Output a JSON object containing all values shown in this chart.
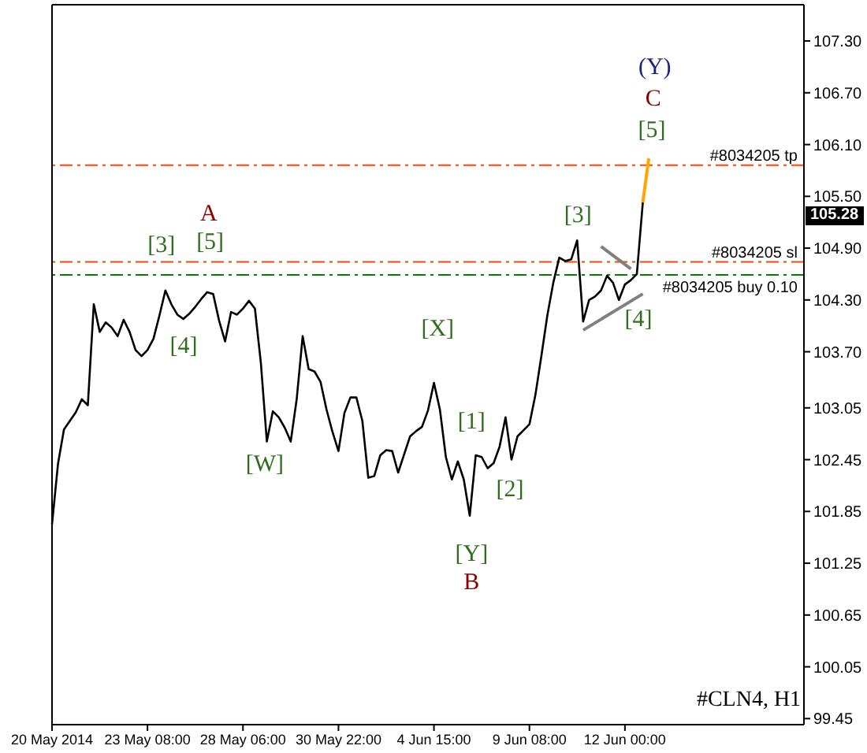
{
  "chart_data": {
    "type": "line",
    "ylim": [
      99.38,
      107.72
    ],
    "categories": [
      "20 May 2014",
      null,
      null,
      null,
      null,
      null,
      null,
      null,
      null,
      null,
      null,
      null,
      null,
      null,
      null,
      null,
      "23 May 08:00",
      null,
      null,
      null,
      null,
      null,
      null,
      null,
      null,
      null,
      null,
      null,
      null,
      null,
      null,
      null,
      "28 May 06:00",
      null,
      null,
      null,
      null,
      null,
      null,
      null,
      null,
      null,
      null,
      null,
      null,
      null,
      null,
      null,
      "30 May 22:00",
      null,
      null,
      null,
      null,
      null,
      null,
      null,
      null,
      null,
      null,
      null,
      null,
      null,
      null,
      null,
      "4 Jun 15:00",
      null,
      null,
      null,
      null,
      null,
      null,
      null,
      null,
      null,
      null,
      null,
      null,
      null,
      null,
      null,
      "9 Jun 08:00",
      null,
      null,
      null,
      null,
      null,
      null,
      null,
      null,
      null,
      null,
      null,
      null,
      null,
      null,
      null,
      "12 Jun 00:00",
      null,
      null,
      null,
      null,
      null,
      null,
      null,
      null,
      null,
      null,
      null,
      null,
      null,
      null,
      null,
      null,
      null,
      null,
      null,
      null,
      null,
      null,
      null,
      null,
      null,
      null,
      null,
      null,
      null,
      null
    ],
    "yticks": [
      99.45,
      100.05,
      100.65,
      101.25,
      101.85,
      102.45,
      103.05,
      {
        "value": 103.7,
        "label": "103.70"
      },
      {
        "value": 104.3,
        "label": "104.30"
      },
      {
        "value": 104.9,
        "label": "104.90"
      },
      {
        "value": 105.5,
        "label": "105.50"
      },
      {
        "value": 106.1,
        "label": "106.10"
      },
      {
        "value": 106.7,
        "label": "106.70"
      },
      {
        "value": 107.3,
        "label": "107.30"
      }
    ],
    "marker": "none",
    "line_style": "solid",
    "series": [
      {
        "color": "#000000",
        "values": [
          101.7,
          102.4,
          102.8,
          102.9,
          103.0,
          103.15,
          103.08,
          104.25,
          103.93,
          104.04,
          103.98,
          103.88,
          104.07,
          103.93,
          103.72,
          103.65,
          103.72,
          103.85,
          104.12,
          104.41,
          104.25,
          104.13,
          104.08,
          104.14,
          104.22,
          104.31,
          104.39,
          104.37,
          104.06,
          103.82,
          104.16,
          104.13,
          104.2,
          104.29,
          104.2,
          103.57,
          102.66,
          103.01,
          102.94,
          102.82,
          102.66,
          103.15,
          103.88,
          103.5,
          103.47,
          103.35,
          103.03,
          102.77,
          102.55,
          102.99,
          103.17,
          103.17,
          102.9,
          102.24,
          102.26,
          102.5,
          102.56,
          102.55,
          102.3,
          102.51,
          102.72,
          102.78,
          102.83,
          103.02,
          103.34,
          103.03,
          102.48,
          102.22,
          102.43,
          102.22,
          101.8,
          102.5,
          102.48,
          102.35,
          102.41,
          102.6,
          102.94,
          102.45,
          102.72,
          102.79,
          102.86,
          103.2,
          103.65,
          104.12,
          104.5,
          104.79,
          104.75,
          104.77,
          104.99,
          104.05,
          104.3,
          104.34,
          104.41,
          104.58,
          104.5,
          104.3,
          104.48,
          104.53,
          104.6,
          105.43,
          null,
          null,
          null,
          null,
          null,
          null,
          null,
          null,
          null,
          null,
          null,
          null,
          null,
          null,
          null,
          null,
          null,
          null,
          null,
          null,
          null,
          null,
          null,
          null,
          null,
          null,
          null
        ]
      },
      {
        "color": "#ffa500",
        "values": [
          null,
          null,
          null,
          null,
          null,
          null,
          null,
          null,
          null,
          null,
          null,
          null,
          null,
          null,
          null,
          null,
          null,
          null,
          null,
          null,
          null,
          null,
          null,
          null,
          null,
          null,
          null,
          null,
          null,
          null,
          null,
          null,
          null,
          null,
          null,
          null,
          null,
          null,
          null,
          null,
          null,
          null,
          null,
          null,
          null,
          null,
          null,
          null,
          null,
          null,
          null,
          null,
          null,
          null,
          null,
          null,
          null,
          null,
          null,
          null,
          null,
          null,
          null,
          null,
          null,
          null,
          null,
          null,
          null,
          null,
          null,
          null,
          null,
          null,
          null,
          null,
          null,
          null,
          null,
          null,
          null,
          null,
          null,
          null,
          null,
          null,
          null,
          null,
          null,
          null,
          null,
          null,
          null,
          null,
          null,
          null,
          null,
          null,
          null,
          105.43,
          105.94,
          null,
          null,
          null,
          null,
          null,
          null,
          null,
          null,
          null,
          null,
          null,
          null,
          null,
          null,
          null,
          null,
          null,
          null,
          null,
          null,
          null,
          null,
          null,
          null,
          null,
          null
        ]
      },
      {
        "color": "#808080",
        "values": [
          null,
          null,
          null,
          null,
          null,
          null,
          null,
          null,
          null,
          null,
          null,
          null,
          null,
          null,
          null,
          null,
          null,
          null,
          null,
          null,
          null,
          null,
          null,
          null,
          null,
          null,
          null,
          null,
          null,
          null,
          null,
          null,
          null,
          null,
          null,
          null,
          null,
          null,
          null,
          null,
          null,
          null,
          null,
          null,
          null,
          null,
          null,
          null,
          null,
          null,
          null,
          null,
          null,
          null,
          null,
          null,
          null,
          null,
          null,
          null,
          null,
          null,
          null,
          null,
          null,
          null,
          null,
          null,
          null,
          null,
          null,
          null,
          null,
          null,
          null,
          null,
          null,
          null,
          null,
          null,
          null,
          null,
          null,
          null,
          null,
          null,
          null,
          null,
          null,
          103.95,
          null,
          null,
          null,
          null,
          null,
          null,
          null,
          null,
          null,
          104.37,
          null,
          null,
          null,
          null,
          null,
          null,
          null,
          null,
          null,
          null,
          null,
          null,
          null,
          null,
          null,
          null,
          null,
          null,
          null,
          null,
          null,
          null,
          null,
          null,
          null,
          null,
          null
        ]
      },
      {
        "color": "#808080",
        "values": [
          null,
          null,
          null,
          null,
          null,
          null,
          null,
          null,
          null,
          null,
          null,
          null,
          null,
          null,
          null,
          null,
          null,
          null,
          null,
          null,
          null,
          null,
          null,
          null,
          null,
          null,
          null,
          null,
          null,
          null,
          null,
          null,
          null,
          null,
          null,
          null,
          null,
          null,
          null,
          null,
          null,
          null,
          null,
          null,
          null,
          null,
          null,
          null,
          null,
          null,
          null,
          null,
          null,
          null,
          null,
          null,
          null,
          null,
          null,
          null,
          null,
          null,
          null,
          null,
          null,
          null,
          null,
          null,
          null,
          null,
          null,
          null,
          null,
          null,
          null,
          null,
          null,
          null,
          null,
          null,
          null,
          null,
          null,
          null,
          null,
          null,
          null,
          null,
          null,
          null,
          null,
          null,
          104.92,
          null,
          null,
          null,
          null,
          104.66,
          null,
          null,
          null,
          null,
          null,
          null,
          null,
          null,
          null,
          null,
          null,
          null,
          null,
          null,
          null,
          null,
          null,
          null,
          null,
          null,
          null,
          null,
          null,
          null,
          null,
          null,
          null,
          null,
          null
        ]
      }
    ],
    "ref_lines": [
      {
        "axis": "y",
        "value": 105.86,
        "label": "#8034205 tp",
        "color": "#ff4500",
        "line_style": "dashed"
      },
      {
        "axis": "y",
        "value": 104.74,
        "label": "#8034205 sl",
        "color": "#ff4500",
        "line_style": "dashed"
      },
      {
        "axis": "y",
        "value": 104.59,
        "label": "#8034205 buy 0.10",
        "color": "#008000",
        "line_style": "dashed"
      }
    ],
    "annotations": [
      "[3]",
      "A",
      "[5]",
      "[4]",
      "[W]",
      "[X]",
      "[1]",
      "[2]",
      "[Y]",
      "B",
      "[3]",
      "[4]",
      "[5]",
      "C",
      "(Y)",
      "105.28",
      "#CLN4, H1"
    ]
  }
}
